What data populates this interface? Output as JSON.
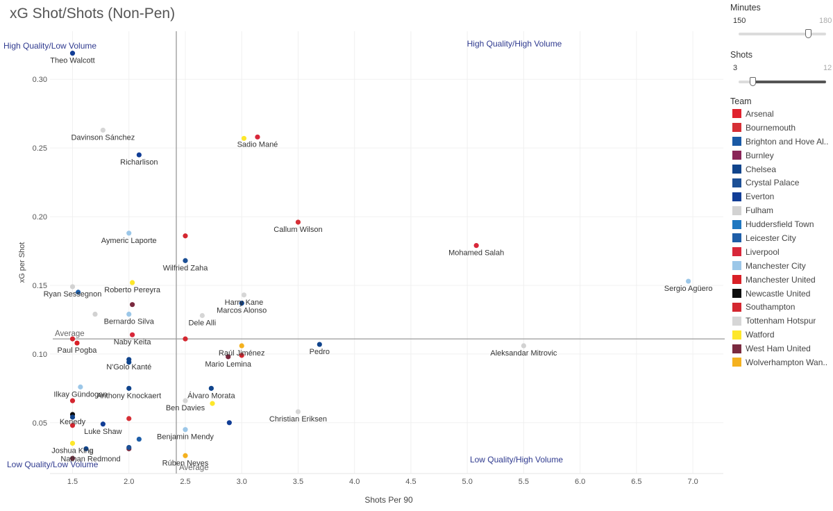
{
  "chart_data": {
    "type": "scatter",
    "title": "xG Shot/Shots (Non-Pen)",
    "xlabel": "Shots Per 90",
    "ylabel": "xG per Shot",
    "xlim": [
      1.3,
      7.27
    ],
    "ylim": [
      0.013,
      0.335
    ],
    "xticks": [
      "1.5",
      "2.0",
      "2.5",
      "3.0",
      "3.5",
      "4.0",
      "4.5",
      "5.0",
      "5.5",
      "6.0",
      "6.5",
      "7.0"
    ],
    "yticks": [
      "0.05",
      "0.10",
      "0.15",
      "0.20",
      "0.25",
      "0.30"
    ],
    "reference_lines": {
      "x": {
        "value": 2.42,
        "label": "Average"
      },
      "y": {
        "value": 0.111,
        "label": "Average"
      }
    },
    "quadrant_labels": {
      "top_left": "High Quality/Low Volume",
      "top_right": "High Quality/High Volume",
      "bottom_left": "Low Quality/Low Volume",
      "bottom_right": "Low Quality/High Volume"
    },
    "points": [
      {
        "x": 1.5,
        "y": 0.319,
        "team": "Everton",
        "label": "Theo Walcott"
      },
      {
        "x": 1.77,
        "y": 0.263,
        "team": "Tottenham Hotspur",
        "label": "Davinson Sánchez"
      },
      {
        "x": 2.09,
        "y": 0.245,
        "team": "Everton",
        "label": "Richarlison"
      },
      {
        "x": 3.02,
        "y": 0.257,
        "team": "Watford",
        "label": ""
      },
      {
        "x": 3.14,
        "y": 0.258,
        "team": "Liverpool",
        "label": "Sadio Mané"
      },
      {
        "x": 3.5,
        "y": 0.196,
        "team": "Bournemouth",
        "label": "Callum Wilson"
      },
      {
        "x": 5.08,
        "y": 0.179,
        "team": "Liverpool",
        "label": "Mohamed Salah"
      },
      {
        "x": 2.0,
        "y": 0.188,
        "team": "Manchester City",
        "label": "Aymeric Laporte"
      },
      {
        "x": 2.5,
        "y": 0.186,
        "team": "Southampton",
        "label": ""
      },
      {
        "x": 2.5,
        "y": 0.168,
        "team": "Crystal Palace",
        "label": "Wilfried Zaha"
      },
      {
        "x": 6.96,
        "y": 0.153,
        "team": "Manchester City",
        "label": "Sergio Agüero"
      },
      {
        "x": 1.5,
        "y": 0.149,
        "team": "Fulham",
        "label": "Ryan Sessegnon"
      },
      {
        "x": 1.55,
        "y": 0.145,
        "team": "Leicester City",
        "label": ""
      },
      {
        "x": 2.03,
        "y": 0.152,
        "team": "Watford",
        "label": "Roberto Pereyra"
      },
      {
        "x": 2.03,
        "y": 0.136,
        "team": "West Ham United",
        "label": ""
      },
      {
        "x": 3.02,
        "y": 0.143,
        "team": "Tottenham Hotspur",
        "label": "Harry Kane"
      },
      {
        "x": 3.0,
        "y": 0.137,
        "team": "Chelsea",
        "label": "Marcos Alonso"
      },
      {
        "x": 1.7,
        "y": 0.129,
        "team": "Fulham",
        "label": ""
      },
      {
        "x": 2.0,
        "y": 0.129,
        "team": "Manchester City",
        "label": "Bernardo Silva"
      },
      {
        "x": 2.65,
        "y": 0.128,
        "team": "Tottenham Hotspur",
        "label": "Dele Alli"
      },
      {
        "x": 2.03,
        "y": 0.114,
        "team": "Liverpool",
        "label": "Naby Keita"
      },
      {
        "x": 2.5,
        "y": 0.111,
        "team": "Southampton",
        "label": ""
      },
      {
        "x": 1.5,
        "y": 0.111,
        "team": "Southampton",
        "label": ""
      },
      {
        "x": 1.54,
        "y": 0.108,
        "team": "Manchester United",
        "label": "Paul Pogba"
      },
      {
        "x": 3.0,
        "y": 0.106,
        "team": "Wolverhampton Wanderers",
        "label": "Raúl Jiménez"
      },
      {
        "x": 3.69,
        "y": 0.107,
        "team": "Chelsea",
        "label": "Pedro"
      },
      {
        "x": 5.5,
        "y": 0.106,
        "team": "Fulham",
        "label": "Aleksandar Mitrovic"
      },
      {
        "x": 2.88,
        "y": 0.098,
        "team": "West Ham United",
        "label": "Mario Lemina"
      },
      {
        "x": 3.0,
        "y": 0.099,
        "team": "Southampton",
        "label": ""
      },
      {
        "x": 2.0,
        "y": 0.096,
        "team": "Chelsea",
        "label": "N'Golo Kanté"
      },
      {
        "x": 2.0,
        "y": 0.094,
        "team": "Chelsea",
        "label": ""
      },
      {
        "x": 1.57,
        "y": 0.076,
        "team": "Manchester City",
        "label": "Ilkay Gündogan"
      },
      {
        "x": 2.0,
        "y": 0.075,
        "team": "Chelsea",
        "label": "Anthony Knockaert"
      },
      {
        "x": 2.73,
        "y": 0.075,
        "team": "Chelsea",
        "label": "Álvaro Morata"
      },
      {
        "x": 2.5,
        "y": 0.066,
        "team": "Tottenham Hotspur",
        "label": "Ben Davies"
      },
      {
        "x": 2.74,
        "y": 0.064,
        "team": "Watford",
        "label": ""
      },
      {
        "x": 1.5,
        "y": 0.066,
        "team": "Southampton",
        "label": ""
      },
      {
        "x": 1.5,
        "y": 0.056,
        "team": "Newcastle United",
        "label": "Kenedy"
      },
      {
        "x": 1.5,
        "y": 0.054,
        "team": "Chelsea",
        "label": ""
      },
      {
        "x": 3.5,
        "y": 0.058,
        "team": "Tottenham Hotspur",
        "label": "Christian Eriksen"
      },
      {
        "x": 2.0,
        "y": 0.053,
        "team": "Bournemouth",
        "label": ""
      },
      {
        "x": 2.89,
        "y": 0.05,
        "team": "Everton",
        "label": ""
      },
      {
        "x": 1.5,
        "y": 0.048,
        "team": "Southampton",
        "label": ""
      },
      {
        "x": 1.77,
        "y": 0.049,
        "team": "Everton",
        "label": "Luke Shaw"
      },
      {
        "x": 2.5,
        "y": 0.045,
        "team": "Manchester City",
        "label": "Benjamin Mendy"
      },
      {
        "x": 1.5,
        "y": 0.035,
        "team": "Watford",
        "label": "Joshua King"
      },
      {
        "x": 2.09,
        "y": 0.038,
        "team": "Leicester City",
        "label": ""
      },
      {
        "x": 1.62,
        "y": 0.031,
        "team": "Chelsea",
        "label": ""
      },
      {
        "x": 1.66,
        "y": 0.029,
        "team": "Fulham",
        "label": "Nathan Redmond"
      },
      {
        "x": 2.0,
        "y": 0.031,
        "team": "West Ham United",
        "label": ""
      },
      {
        "x": 2.0,
        "y": 0.032,
        "team": "Crystal Palace",
        "label": ""
      },
      {
        "x": 1.5,
        "y": 0.024,
        "team": "West Ham United",
        "label": ""
      },
      {
        "x": 2.5,
        "y": 0.026,
        "team": "Wolverhampton Wanderers",
        "label": "Rúben Neves"
      }
    ]
  },
  "filters": {
    "minutes": {
      "title": "Minutes",
      "min_label": "150",
      "max_label": "180",
      "value": 0.82
    },
    "shots": {
      "title": "Shots",
      "min_label": "3",
      "max_label": "12",
      "value": 0.0
    }
  },
  "legend": {
    "title": "Team",
    "items": [
      {
        "name": "Arsenal",
        "color": "#e0222e"
      },
      {
        "name": "Bournemouth",
        "color": "#d62f36"
      },
      {
        "name": "Brighton and Hove Albion",
        "display": "Brighton and Hove Al..",
        "color": "#1a5aa5"
      },
      {
        "name": "Burnley",
        "color": "#8a2558"
      },
      {
        "name": "Chelsea",
        "color": "#10448c"
      },
      {
        "name": "Crystal Palace",
        "color": "#1c4f95"
      },
      {
        "name": "Everton",
        "color": "#113d96"
      },
      {
        "name": "Fulham",
        "color": "#d2d2d2"
      },
      {
        "name": "Huddersfield Town",
        "color": "#1f77c0"
      },
      {
        "name": "Leicester City",
        "color": "#1e5ea8"
      },
      {
        "name": "Liverpool",
        "color": "#d8273a"
      },
      {
        "name": "Manchester City",
        "color": "#9cc7e8"
      },
      {
        "name": "Manchester United",
        "color": "#d92027"
      },
      {
        "name": "Newcastle United",
        "color": "#0d0d0d"
      },
      {
        "name": "Southampton",
        "color": "#d42730"
      },
      {
        "name": "Tottenham Hotspur",
        "color": "#d6d6d6"
      },
      {
        "name": "Watford",
        "color": "#fde72b"
      },
      {
        "name": "West Ham United",
        "color": "#7a2a3f"
      },
      {
        "name": "Wolverhampton Wanderers",
        "display": "Wolverhampton Wan..",
        "color": "#f4b11f"
      }
    ]
  }
}
